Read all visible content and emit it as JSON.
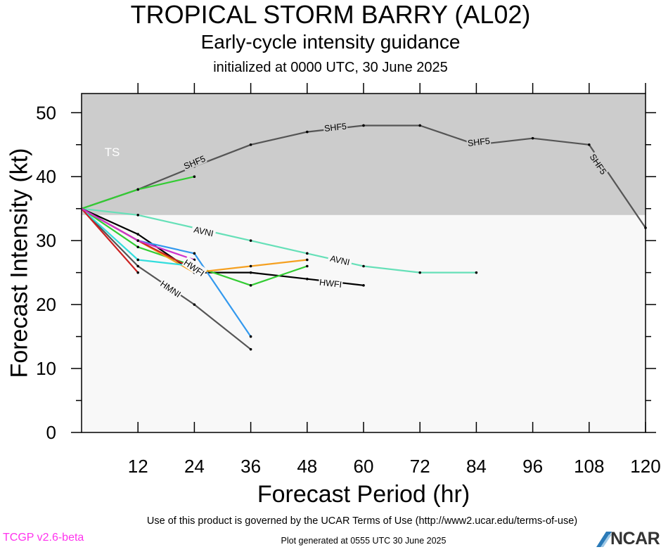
{
  "header": {
    "title": "TROPICAL STORM BARRY (AL02)",
    "subtitle": "Early-cycle intensity guidance",
    "init_line": "initialized at 0000 UTC, 30 June 2025"
  },
  "footer": {
    "terms": "Use of this product is governed by the UCAR Terms of Use (http://www2.ucar.edu/terms-of-use)",
    "version": "TCGP v2.6-beta",
    "generated": "Plot generated at 0555 UTC   30 June 2025",
    "logo_text": "NCAR"
  },
  "chart_data": {
    "type": "line",
    "xlabel": "Forecast Period (hr)",
    "ylabel": "Forecast Intensity (kt)",
    "xlim": [
      0,
      120
    ],
    "ylim": [
      0,
      53
    ],
    "xticks": [
      12,
      24,
      36,
      48,
      60,
      72,
      84,
      96,
      108,
      120
    ],
    "yticks": [
      0,
      10,
      20,
      30,
      40,
      50
    ],
    "band": {
      "label": "TS",
      "from": 34,
      "to": 53,
      "color": "#cccccc"
    },
    "below_band_color": "#f8f8f8",
    "series": [
      {
        "name": "SHF5",
        "color": "#555555",
        "x": [
          0,
          12,
          24,
          36,
          48,
          60,
          72,
          84,
          96,
          108,
          120
        ],
        "y": [
          35,
          38,
          41.6,
          45,
          47,
          48,
          48,
          45,
          46,
          45,
          32
        ],
        "labels": [
          {
            "x": 24,
            "y": 42.3
          },
          {
            "x": 54,
            "y": 47.8
          },
          {
            "x": 84.5,
            "y": 45.5
          },
          {
            "x": 110,
            "y": 42
          }
        ]
      },
      {
        "name": "AVNI",
        "color": "#66e0b8",
        "x": [
          0,
          12,
          24,
          36,
          48,
          60,
          72,
          84
        ],
        "y": [
          35,
          34,
          32,
          30,
          28,
          26,
          25,
          25
        ],
        "labels": [
          {
            "x": 26,
            "y": 31.5
          },
          {
            "x": 55,
            "y": 27
          }
        ]
      },
      {
        "name": "HWFI",
        "color": "#000000",
        "x": [
          0,
          12,
          24,
          36,
          48,
          60
        ],
        "y": [
          35,
          31,
          25,
          25,
          24,
          23
        ],
        "labels": [
          {
            "x": 24,
            "y": 25.8
          },
          {
            "x": 53,
            "y": 23.4
          }
        ]
      },
      {
        "name": "HMNI",
        "color": "#555555",
        "x": [
          0,
          12,
          24,
          36
        ],
        "y": [
          35,
          26,
          20,
          13
        ],
        "labels": [
          {
            "x": 19,
            "y": 22.5
          }
        ]
      },
      {
        "name": "",
        "color": "#3399ee",
        "x": [
          0,
          12,
          24,
          36
        ],
        "y": [
          35,
          30,
          28,
          15
        ]
      },
      {
        "name": "",
        "color": "#33cc33",
        "x": [
          0,
          12,
          24
        ],
        "y": [
          35,
          38,
          40
        ]
      },
      {
        "name": "",
        "color": "#33cc33",
        "x": [
          0,
          12,
          24,
          36,
          48
        ],
        "y": [
          35,
          29,
          26,
          23,
          26
        ]
      },
      {
        "name": "",
        "color": "#f5a020",
        "x": [
          0,
          24,
          36,
          48
        ],
        "y": [
          35,
          25,
          26,
          27
        ]
      },
      {
        "name": "",
        "color": "#33dddd",
        "x": [
          0,
          12,
          24
        ],
        "y": [
          35,
          27,
          26
        ]
      },
      {
        "name": "",
        "color": "#cc2222",
        "x": [
          0,
          12
        ],
        "y": [
          35,
          25
        ]
      },
      {
        "name": "",
        "color": "#cc2222",
        "x": [
          0,
          12,
          24
        ],
        "y": [
          35,
          30,
          25.5
        ]
      },
      {
        "name": "",
        "color": "#cc33cc",
        "x": [
          0,
          12,
          24
        ],
        "y": [
          35,
          30,
          27
        ]
      }
    ]
  }
}
